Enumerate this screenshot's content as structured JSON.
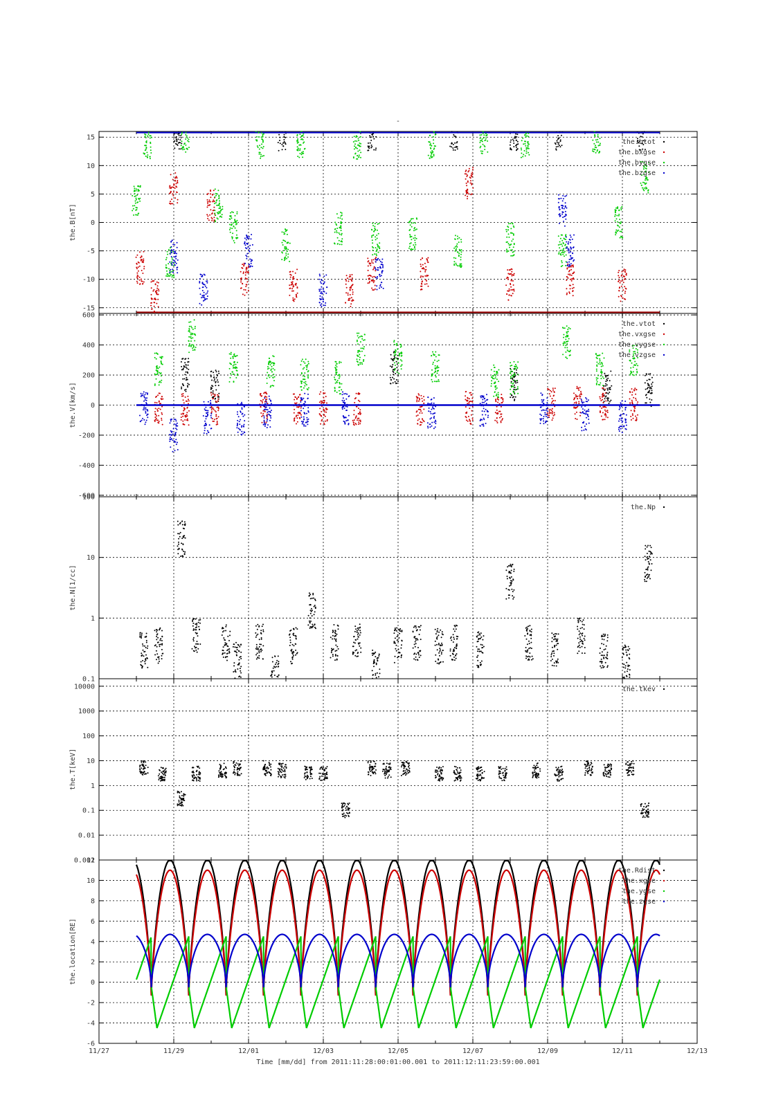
{
  "title": "-",
  "x_axis": {
    "label": "Time [mm/dd]  from 2011:11:28:00:01:00.001  to  2011:12:11:23:59:00.001",
    "tick_labels": [
      "11/27",
      "11/29",
      "12/01",
      "12/03",
      "12/05",
      "12/07",
      "12/09",
      "12/11",
      "12/13"
    ],
    "range_days": [
      0,
      16
    ],
    "data_range_days": [
      1.0,
      15.0
    ]
  },
  "colors": {
    "black": "#000000",
    "red": "#cc0000",
    "green": "#00cc00",
    "blue": "#0000cc"
  },
  "chart_data": [
    {
      "type": "scatter",
      "ylabel": "the.B[nT]",
      "ylim": [
        -16,
        16
      ],
      "yticks": [
        -15,
        -10,
        -5,
        0,
        5,
        10,
        15
      ],
      "tick_labels": [
        "-15",
        "-10",
        "-5",
        "0",
        "5",
        "10",
        "15"
      ],
      "legend_position": "top-right",
      "series": [
        {
          "name": "the.btot",
          "color": "#000000",
          "x": [
            2.1,
            4.9,
            7.3,
            9.5,
            11.1,
            12.3,
            14.5
          ],
          "y": [
            15.5,
            15.5,
            15.5,
            15.5,
            15.5,
            15.5,
            15.5
          ]
        },
        {
          "name": "the.bxgse",
          "color": "#cc0000",
          "x": [
            1.1,
            1.5,
            2.0,
            3.0,
            3.9,
            5.2,
            6.7,
            7.3,
            8.7,
            9.9,
            11.0,
            12.6,
            14.0
          ],
          "y": [
            -8,
            -13,
            6,
            3,
            -10,
            -11,
            -12,
            -9,
            -9,
            7,
            -11,
            -10,
            -11
          ]
        },
        {
          "name": "the.bygse",
          "color": "#00cc00",
          "x": [
            1.0,
            1.3,
            1.9,
            2.3,
            3.2,
            3.6,
            4.3,
            5.0,
            5.4,
            6.4,
            6.9,
            7.4,
            8.4,
            8.9,
            9.6,
            10.3,
            11.0,
            11.4,
            12.4,
            13.3,
            13.9,
            14.6
          ],
          "y": [
            4,
            14,
            -7,
            15,
            3,
            -1,
            14,
            -4,
            14,
            -1,
            14,
            -3,
            -2,
            14,
            -5,
            15,
            -3,
            14,
            -5,
            15,
            0,
            8
          ]
        },
        {
          "name": "the.bzgse",
          "color": "#0000cc",
          "x": [
            2.0,
            2.8,
            4.0,
            6.0,
            7.5,
            12.4,
            12.6
          ],
          "y": [
            -6,
            -12,
            -5,
            -12,
            -9,
            2,
            -5
          ]
        }
      ]
    },
    {
      "type": "scatter",
      "ylabel": "the.V[km/s]",
      "ylim": [
        -610,
        610
      ],
      "yticks": [
        -600,
        -400,
        -200,
        0,
        200,
        400,
        600
      ],
      "tick_labels": [
        "-600",
        "-400",
        "-200",
        "0",
        "200",
        "400",
        "600"
      ],
      "legend_position": "top-right",
      "series": [
        {
          "name": "the.vtot",
          "color": "#000000",
          "x": [
            2.3,
            3.1,
            7.9,
            11.1,
            13.6,
            14.7
          ],
          "y": [
            200,
            130,
            250,
            140,
            120,
            100
          ]
        },
        {
          "name": "the.vxgse",
          "color": "#cc0000",
          "x": [
            1.6,
            2.3,
            3.1,
            4.4,
            5.3,
            6.0,
            6.9,
            8.6,
            9.9,
            10.7,
            12.1,
            12.8,
            13.5,
            14.3
          ],
          "y": [
            -20,
            -30,
            -25,
            -20,
            -30,
            -20,
            -25,
            -25,
            -20,
            -20,
            10,
            15,
            10,
            5
          ]
        },
        {
          "name": "the.vygse",
          "color": "#00cc00",
          "x": [
            1.6,
            2.5,
            3.6,
            4.6,
            5.5,
            6.4,
            7.0,
            8.0,
            9.0,
            10.6,
            11.1,
            12.5,
            13.4,
            14.3
          ],
          "y": [
            240,
            460,
            250,
            230,
            200,
            180,
            370,
            320,
            260,
            160,
            180,
            420,
            240,
            290
          ]
        },
        {
          "name": "the.vzgse",
          "color": "#0000cc",
          "x": [
            1.2,
            2.0,
            2.9,
            3.8,
            4.5,
            5.5,
            6.6,
            8.9,
            10.3,
            11.9,
            13.0,
            14.0
          ],
          "y": [
            -20,
            -200,
            -80,
            -90,
            -40,
            -30,
            -20,
            -50,
            -30,
            -20,
            -60,
            -80
          ]
        }
      ]
    },
    {
      "type": "scatter",
      "ylabel": "the.N[1/cc]",
      "yscale": "log",
      "ylim": [
        0.1,
        100
      ],
      "yticks": [
        0.1,
        1,
        10,
        100
      ],
      "tick_labels": [
        "0.1",
        "1",
        "10",
        "100"
      ],
      "legend_position": "top-right",
      "series": [
        {
          "name": "the.Np",
          "color": "#000000",
          "x": [
            1.2,
            1.6,
            2.2,
            2.6,
            3.4,
            3.7,
            4.3,
            4.7,
            5.2,
            5.7,
            6.3,
            6.9,
            7.4,
            8.0,
            8.5,
            9.1,
            9.5,
            10.2,
            11.0,
            11.5,
            12.2,
            12.9,
            13.5,
            14.1,
            14.7
          ],
          "y": [
            0.3,
            0.35,
            20,
            0.5,
            0.4,
            0.2,
            0.4,
            0.12,
            0.35,
            1.3,
            0.4,
            0.4,
            0.15,
            0.35,
            0.4,
            0.35,
            0.4,
            0.3,
            4.0,
            0.4,
            0.3,
            0.5,
            0.3,
            0.18,
            8.0
          ]
        }
      ]
    },
    {
      "type": "scatter",
      "ylabel": "the.T[keV]",
      "yscale": "log",
      "ylim": [
        0.001,
        20000
      ],
      "yticks": [
        0.001,
        0.01,
        0.1,
        1,
        10,
        100,
        1000,
        10000
      ],
      "tick_labels": [
        "0.001",
        "0.01",
        "0.1",
        "1",
        "10",
        "100",
        "1000",
        "10000"
      ],
      "legend_position": "top-right",
      "series": [
        {
          "name": "the.tkev",
          "color": "#000000",
          "x": [
            1.2,
            1.7,
            2.2,
            2.6,
            3.3,
            3.7,
            4.5,
            4.9,
            5.6,
            6.0,
            6.6,
            7.3,
            7.7,
            8.2,
            9.1,
            9.6,
            10.2,
            10.8,
            11.7,
            12.3,
            13.1,
            13.6,
            14.2,
            14.6
          ],
          "y": [
            5,
            3,
            0.3,
            3,
            4,
            5,
            5,
            4,
            3,
            3,
            0.1,
            5,
            4,
            5,
            3,
            3,
            3,
            3,
            4,
            3,
            5,
            4,
            5,
            0.1
          ]
        }
      ]
    },
    {
      "type": "line",
      "ylabel": "the.location[RE]",
      "ylim": [
        -6,
        12
      ],
      "yticks": [
        -6,
        -4,
        -2,
        0,
        2,
        4,
        6,
        8,
        10,
        12
      ],
      "tick_labels": [
        "-6",
        "-4",
        "-2",
        "0",
        "2",
        "4",
        "6",
        "8",
        "10",
        "12"
      ],
      "legend_position": "top-right",
      "orbit_period_days": 1.0,
      "perigee_days": [
        1.4,
        2.4,
        3.4,
        4.4,
        5.4,
        6.4,
        7.4,
        8.4,
        9.4,
        10.4,
        11.4,
        12.4,
        13.4,
        14.4
      ],
      "series": [
        {
          "name": "the.Rdist",
          "color": "#000000",
          "max": 12.0,
          "min": -1.3
        },
        {
          "name": "the.xgse",
          "color": "#cc0000",
          "max": 11.0,
          "min": -1.3
        },
        {
          "name": "the.ygse",
          "color": "#00cc00",
          "max": 4.5,
          "min": -4.5
        },
        {
          "name": "the.zgse",
          "color": "#0000cc",
          "max": 4.7,
          "min": -0.5
        }
      ]
    }
  ]
}
